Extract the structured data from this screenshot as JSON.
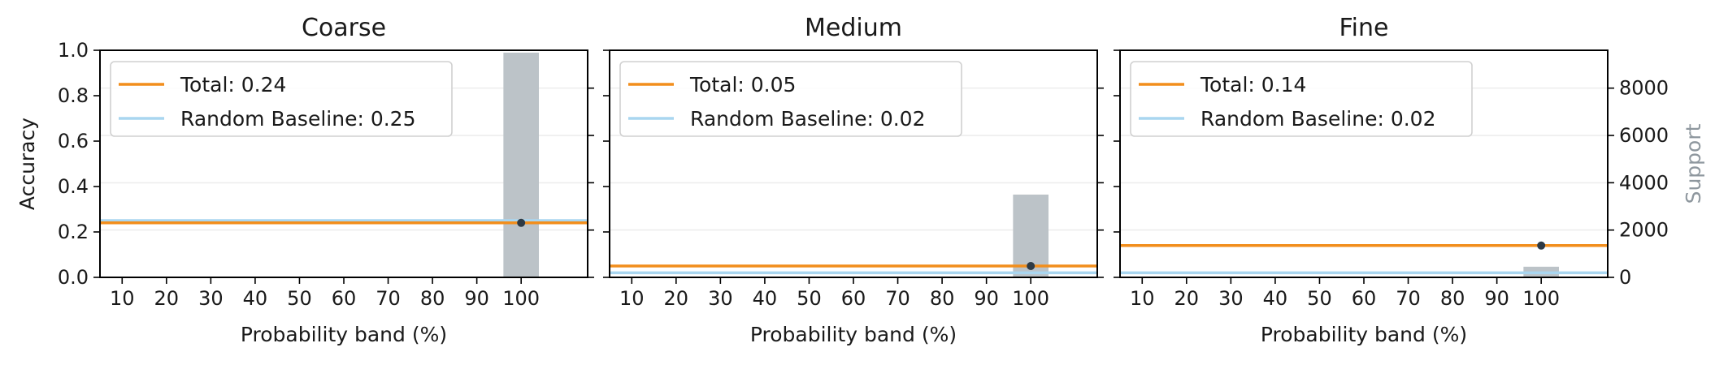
{
  "chart_data": [
    {
      "type": "bar",
      "title": "Coarse",
      "xlabel": "Probability band (%)",
      "ylabel": "Accuracy",
      "ylim": [
        0,
        1.0
      ],
      "yticks": [
        "0.0",
        "0.2",
        "0.4",
        "0.6",
        "0.8",
        "1.0"
      ],
      "categories": [
        "10",
        "20",
        "30",
        "40",
        "50",
        "60",
        "70",
        "80",
        "90",
        "100"
      ],
      "series": [
        {
          "name": "Total: 0.24",
          "type": "hline",
          "value": 0.24,
          "color": "#f28e1c"
        },
        {
          "name": "Random Baseline: 0.25",
          "type": "hline",
          "value": 0.25,
          "color": "#a9d6f0"
        }
      ],
      "support": [
        {
          "x": 100,
          "value": 9500
        }
      ],
      "accuracy_points": [
        {
          "x": 100,
          "value": 0.24
        }
      ],
      "legend": "top-left",
      "grid": true
    },
    {
      "type": "bar",
      "title": "Medium",
      "xlabel": "Probability band (%)",
      "ylim": [
        0,
        1.0
      ],
      "categories": [
        "10",
        "20",
        "30",
        "40",
        "50",
        "60",
        "70",
        "80",
        "90",
        "100"
      ],
      "series": [
        {
          "name": "Total: 0.05",
          "type": "hline",
          "value": 0.05,
          "color": "#f28e1c"
        },
        {
          "name": "Random Baseline: 0.02",
          "type": "hline",
          "value": 0.02,
          "color": "#a9d6f0"
        }
      ],
      "support": [
        {
          "x": 100,
          "value": 3500
        }
      ],
      "accuracy_points": [
        {
          "x": 100,
          "value": 0.05
        }
      ],
      "legend": "top-left",
      "grid": true
    },
    {
      "type": "bar",
      "title": "Fine",
      "xlabel": "Probability band (%)",
      "ylim": [
        0,
        1.0
      ],
      "y2label": "Support",
      "y2lim": [
        0,
        9600
      ],
      "y2ticks": [
        "0",
        "2000",
        "4000",
        "6000",
        "8000"
      ],
      "categories": [
        "10",
        "20",
        "30",
        "40",
        "50",
        "60",
        "70",
        "80",
        "90",
        "100"
      ],
      "series": [
        {
          "name": "Total: 0.14",
          "type": "hline",
          "value": 0.14,
          "color": "#f28e1c"
        },
        {
          "name": "Random Baseline: 0.02",
          "type": "hline",
          "value": 0.02,
          "color": "#a9d6f0"
        }
      ],
      "support": [
        {
          "x": 100,
          "value": 450
        }
      ],
      "accuracy_points": [
        {
          "x": 100,
          "value": 0.14
        }
      ],
      "legend": "top-left",
      "grid": true
    }
  ],
  "colors": {
    "support_bar": "#bcc3c8",
    "point": "#2f3a44",
    "grid": "#ececec",
    "y2label": "#8e979e"
  }
}
